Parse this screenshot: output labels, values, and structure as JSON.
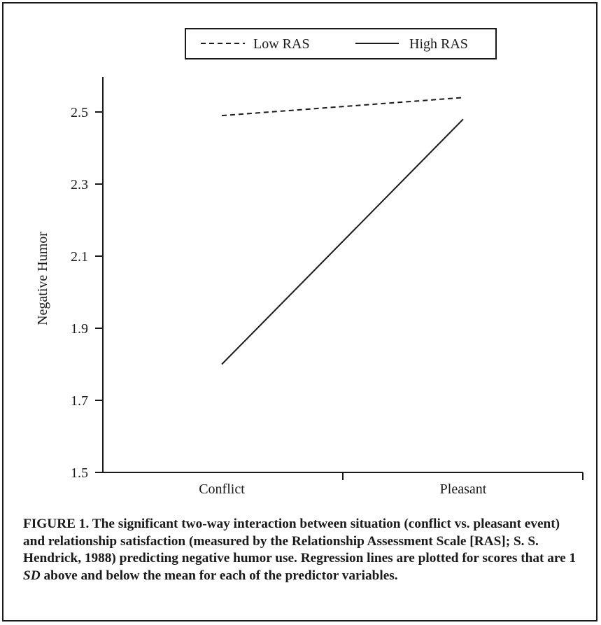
{
  "chart_data": {
    "type": "line",
    "categories": [
      "Conflict",
      "Pleasant"
    ],
    "series": [
      {
        "name": "Low RAS",
        "values": [
          2.49,
          2.54
        ],
        "style": "dashed",
        "color": "#1a1a1a"
      },
      {
        "name": "High RAS",
        "values": [
          1.8,
          2.48
        ],
        "style": "solid",
        "color": "#1a1a1a"
      }
    ],
    "title": "",
    "xlabel": "",
    "ylabel": "Negative Humor",
    "ylim": [
      1.5,
      2.6
    ],
    "yticks": [
      1.5,
      1.7,
      1.9,
      2.1,
      2.3,
      2.5
    ],
    "ytick_labels": [
      "1.5",
      "1.7",
      "1.9",
      "2.1",
      "2.3",
      "2.5"
    ],
    "grid": false,
    "legend_position": "top"
  },
  "caption": {
    "part1": "FIGURE 1. The significant two-way interaction between situation (conflict vs. pleasant event) and relationship satisfaction (measured by the Relationship Assessment Scale [RAS]; S. S. Hendrick, 1988) predicting negative humor use. Regression lines are plotted for scores that are 1 ",
    "sd": "SD",
    "part2": " above and below the mean for each of the predictor variables."
  }
}
